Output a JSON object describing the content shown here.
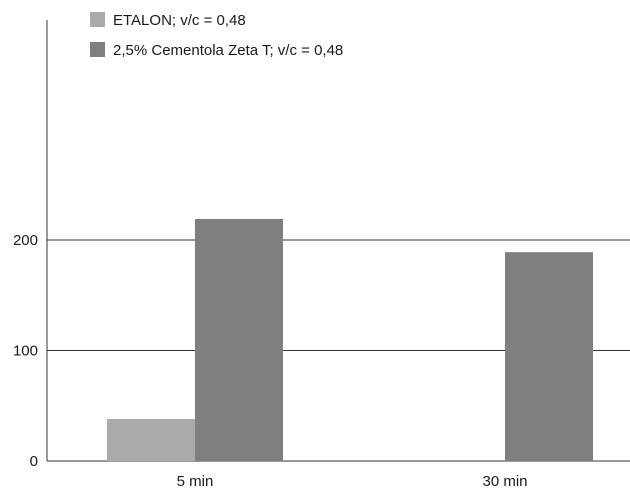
{
  "chart_data": {
    "type": "bar",
    "categories": [
      "5 min",
      "30 min"
    ],
    "series": [
      {
        "name": "ETALON; v/c = 0,48",
        "values": [
          38,
          null
        ],
        "color": "#aaaaaa"
      },
      {
        "name": "2,5% Cementola Zeta T; v/c = 0,48",
        "values": [
          219,
          189
        ],
        "color": "#7f7f7f"
      }
    ],
    "yticks": [
      "0",
      "100",
      "200"
    ],
    "ylim": [
      0,
      400
    ],
    "grid": "horizontal at 100 and 200",
    "legend_position": "top-left",
    "title": "",
    "xlabel": "",
    "ylabel": ""
  }
}
